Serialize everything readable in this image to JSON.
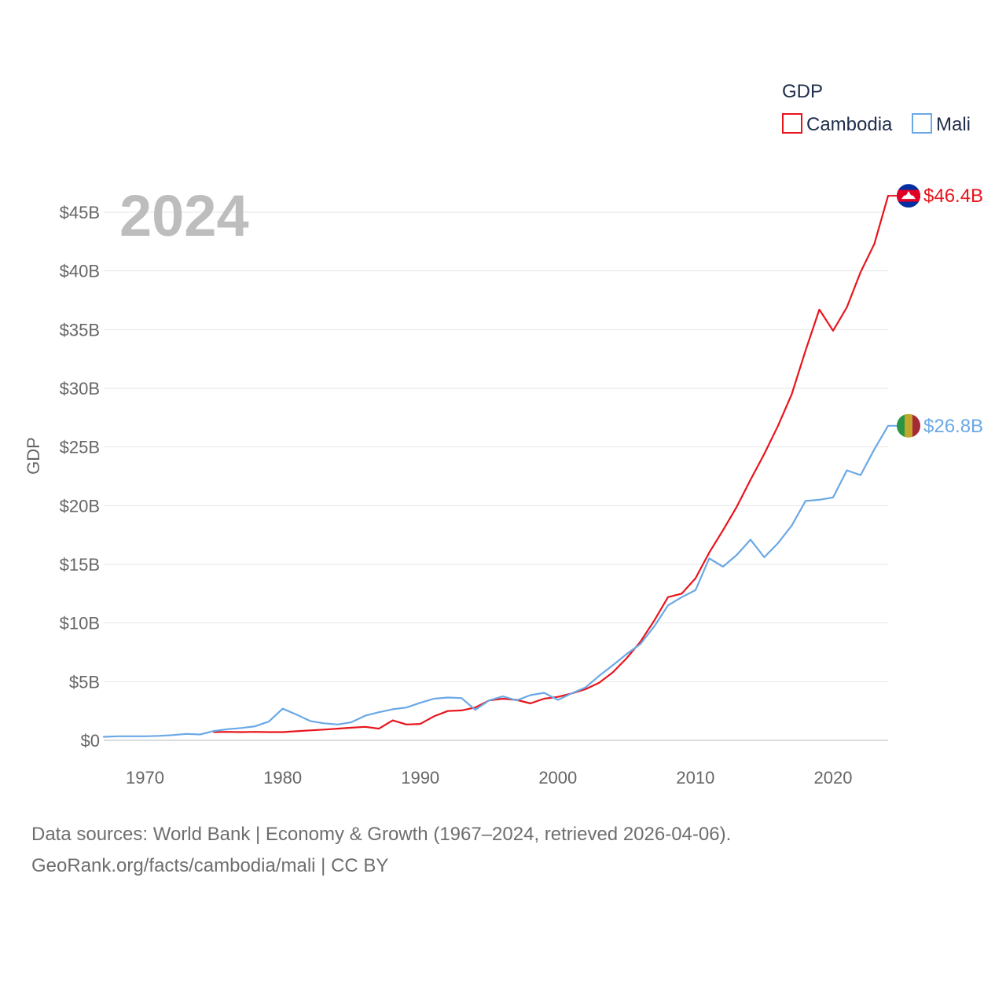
{
  "chart_data": {
    "type": "line",
    "year_label": "2024",
    "ylabel": "GDP",
    "xlabel": "",
    "ylim": [
      0,
      46.4
    ],
    "xlim": [
      1967,
      2024
    ],
    "y_ticks": [
      0,
      5,
      10,
      15,
      20,
      25,
      30,
      35,
      40,
      45
    ],
    "y_tick_labels": [
      "$0",
      "$5B",
      "$10B",
      "$15B",
      "$20B",
      "$25B",
      "$30B",
      "$35B",
      "$40B",
      "$45B"
    ],
    "x_ticks": [
      1970,
      1980,
      1990,
      2000,
      2010,
      2020
    ],
    "x_tick_labels": [
      "1970",
      "1980",
      "1990",
      "2000",
      "2010",
      "2020"
    ],
    "legend": {
      "title": "GDP",
      "placement": "top-right"
    },
    "units": "USD billions",
    "series": [
      {
        "name": "Cambodia",
        "color": "#e8141c",
        "end_label": "$46.4B",
        "flag": "cambodia-flag-icon",
        "x": [
          1975,
          1976,
          1977,
          1978,
          1979,
          1980,
          1981,
          1982,
          1983,
          1984,
          1985,
          1986,
          1987,
          1988,
          1989,
          1990,
          1991,
          1992,
          1993,
          1994,
          1995,
          1996,
          1997,
          1998,
          1999,
          2000,
          2001,
          2002,
          2003,
          2004,
          2005,
          2006,
          2007,
          2008,
          2009,
          2010,
          2011,
          2012,
          2013,
          2014,
          2015,
          2016,
          2017,
          2018,
          2019,
          2020,
          2021,
          2022,
          2023,
          2024
        ],
        "values": [
          0.7,
          0.72,
          0.7,
          0.72,
          0.7,
          0.7,
          0.78,
          0.85,
          0.92,
          1.0,
          1.08,
          1.15,
          1.0,
          1.7,
          1.35,
          1.4,
          2.05,
          2.5,
          2.55,
          2.8,
          3.4,
          3.55,
          3.45,
          3.15,
          3.55,
          3.7,
          4.0,
          4.35,
          4.9,
          5.8,
          7.0,
          8.4,
          10.2,
          12.2,
          12.5,
          13.8,
          16.0,
          17.9,
          19.9,
          22.2,
          24.4,
          26.8,
          29.5,
          33.2,
          36.7,
          34.9,
          36.9,
          39.9,
          42.3,
          46.4
        ]
      },
      {
        "name": "Mali",
        "color": "#6aa8e6",
        "end_label": "$26.8B",
        "flag": "mali-flag-icon",
        "x": [
          1967,
          1968,
          1969,
          1970,
          1971,
          1972,
          1973,
          1974,
          1975,
          1976,
          1977,
          1978,
          1979,
          1980,
          1981,
          1982,
          1983,
          1984,
          1985,
          1986,
          1987,
          1988,
          1989,
          1990,
          1991,
          1992,
          1993,
          1994,
          1995,
          1996,
          1997,
          1998,
          1999,
          2000,
          2001,
          2002,
          2003,
          2004,
          2005,
          2006,
          2007,
          2008,
          2009,
          2010,
          2011,
          2012,
          2013,
          2014,
          2015,
          2016,
          2017,
          2018,
          2019,
          2020,
          2021,
          2022,
          2023,
          2024
        ],
        "values": [
          0.3,
          0.35,
          0.35,
          0.35,
          0.38,
          0.45,
          0.55,
          0.5,
          0.8,
          0.95,
          1.05,
          1.2,
          1.6,
          2.7,
          2.2,
          1.65,
          1.45,
          1.35,
          1.55,
          2.1,
          2.4,
          2.65,
          2.8,
          3.2,
          3.55,
          3.65,
          3.6,
          2.6,
          3.4,
          3.75,
          3.4,
          3.85,
          4.05,
          3.45,
          4.0,
          4.5,
          5.5,
          6.4,
          7.35,
          8.2,
          9.7,
          11.5,
          12.2,
          12.8,
          15.5,
          14.8,
          15.8,
          17.1,
          15.6,
          16.8,
          18.3,
          20.4,
          20.5,
          20.7,
          23.0,
          22.6,
          24.8,
          26.8
        ]
      }
    ]
  },
  "footer": {
    "line1": "Data sources: World Bank | Economy & Growth (1967–2024, retrieved 2026-04-06).",
    "line2": "GeoRank.org/facts/cambodia/mali | CC BY"
  }
}
